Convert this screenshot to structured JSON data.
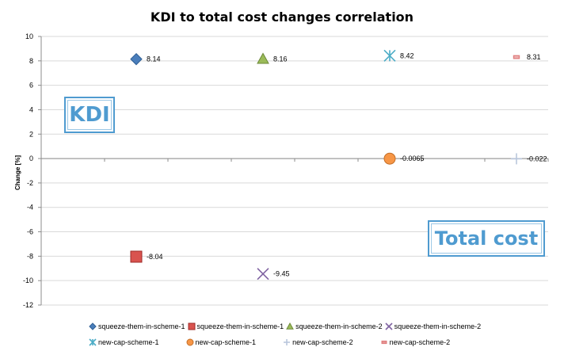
{
  "chart_data": {
    "type": "scatter",
    "title": "KDI to total cost changes correlation",
    "ylabel": "Change [%]",
    "ylim": [
      -12,
      10
    ],
    "ystep": 2,
    "yticks": [
      "10",
      "8",
      "6",
      "4",
      "2",
      "0",
      "-2",
      "-4",
      "-6",
      "-8",
      "-10",
      "-12"
    ],
    "grid": "horizontal",
    "legend_position": "bottom",
    "categories_count": 8,
    "series": [
      {
        "name": "squeeze-them-in-scheme-1",
        "x": 1,
        "y": 8.14,
        "label": "8.14",
        "marker": "diamond",
        "color": "#4a7ebb"
      },
      {
        "name": "squeeze-them-in-scheme-1",
        "x": 1,
        "y": -8.04,
        "label": "-8.04",
        "marker": "square",
        "color": "#d9534f"
      },
      {
        "name": "squeeze-them-in-scheme-2",
        "x": 3,
        "y": 8.16,
        "label": "8.16",
        "marker": "triangle",
        "color": "#9bbb59"
      },
      {
        "name": "squeeze-them-in-scheme-2",
        "x": 3,
        "y": -9.45,
        "label": "-9.45",
        "marker": "x",
        "color": "#8064a2"
      },
      {
        "name": "new-cap-scheme-1",
        "x": 5,
        "y": 8.42,
        "label": "8.42",
        "marker": "star",
        "color": "#4bacc6"
      },
      {
        "name": "new-cap-scheme-1",
        "x": 5,
        "y": -0.0065,
        "label": "-0.0065",
        "marker": "circle",
        "color": "#f79646"
      },
      {
        "name": "new-cap-scheme-2",
        "x": 7,
        "y": -0.022,
        "label": "-0.022",
        "marker": "plus",
        "color": "#b9c6dc"
      },
      {
        "name": "new-cap-scheme-2",
        "x": 7,
        "y": 8.31,
        "label": "8.31",
        "marker": "dash",
        "color": "#e07f7f"
      }
    ]
  },
  "annotations": {
    "kdi": "KDI",
    "total_cost": "Total cost"
  }
}
